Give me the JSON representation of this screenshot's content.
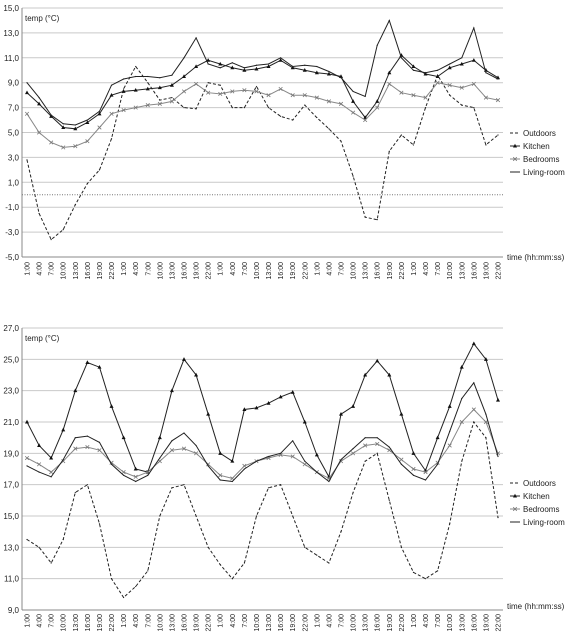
{
  "chart_data": [
    {
      "type": "line",
      "ylabel": "temp (°C)",
      "xlabel": "time (hh:mm:ss)",
      "ylim": [
        -5,
        15
      ],
      "yticks": [
        "-5,0",
        "-3,0",
        "-1,0",
        "1,0",
        "3,0",
        "5,0",
        "7,0",
        "9,0",
        "11,0",
        "13,0",
        "15,0"
      ],
      "categories": [
        "1:00",
        "4:00",
        "7:00",
        "10:00",
        "13:00",
        "16:00",
        "19:00",
        "22:00",
        "1:00",
        "4:00",
        "7:00",
        "10:00",
        "13:00",
        "16:00",
        "19:00",
        "22:00",
        "1:00",
        "4:00",
        "7:00",
        "10:00",
        "13:00",
        "16:00",
        "19:00",
        "22:00",
        "1:00",
        "4:00",
        "7:00",
        "10:00",
        "13:00",
        "16:00",
        "19:00",
        "22:00",
        "1:00",
        "4:00",
        "7:00",
        "10:00",
        "13:00",
        "16:00",
        "19:00",
        "22:00"
      ],
      "grid": true,
      "legend_position": "right",
      "series": [
        {
          "name": "Outdoors",
          "style": "dashed",
          "values": [
            2.8,
            -1.5,
            -3.6,
            -2.8,
            -0.8,
            0.9,
            2.0,
            4.5,
            8.5,
            10.3,
            9.0,
            7.6,
            7.8,
            7.0,
            6.9,
            9.0,
            8.8,
            7.0,
            7.0,
            8.7,
            7.0,
            6.3,
            6.0,
            7.2,
            6.2,
            5.3,
            4.3,
            1.5,
            -1.8,
            -2.0,
            3.5,
            4.8,
            4.0,
            7.0,
            9.6,
            8.0,
            7.2,
            7.0,
            4.0,
            4.8
          ]
        },
        {
          "name": "Kitchen",
          "style": "triangle",
          "values": [
            8.2,
            7.3,
            6.3,
            5.4,
            5.3,
            5.8,
            6.5,
            8.0,
            8.3,
            8.4,
            8.5,
            8.6,
            8.8,
            9.5,
            10.3,
            10.8,
            10.5,
            10.2,
            10.0,
            10.1,
            10.3,
            10.8,
            10.2,
            10.0,
            9.8,
            9.7,
            9.5,
            7.5,
            6.2,
            7.5,
            9.8,
            11.2,
            10.3,
            9.7,
            9.5,
            10.2,
            10.5,
            10.8,
            10.0,
            9.4
          ]
        },
        {
          "name": "Bedrooms",
          "style": "cross",
          "values": [
            6.5,
            5.0,
            4.2,
            3.8,
            3.9,
            4.3,
            5.4,
            6.5,
            6.8,
            7.0,
            7.2,
            7.3,
            7.5,
            8.3,
            8.9,
            8.2,
            8.1,
            8.3,
            8.4,
            8.3,
            8.0,
            8.5,
            8.0,
            8.0,
            7.8,
            7.5,
            7.3,
            6.6,
            6.0,
            7.0,
            8.9,
            8.2,
            8.0,
            7.8,
            9.0,
            8.8,
            8.6,
            8.9,
            7.8,
            7.6
          ]
        },
        {
          "name": "Living-room",
          "style": "plain",
          "values": [
            9.0,
            7.8,
            6.4,
            5.7,
            5.6,
            6.0,
            6.7,
            8.8,
            9.3,
            9.5,
            9.5,
            9.4,
            9.6,
            11.0,
            12.6,
            10.5,
            10.2,
            10.6,
            10.2,
            10.4,
            10.5,
            11.0,
            10.3,
            10.4,
            10.3,
            9.9,
            9.4,
            8.3,
            7.9,
            12.0,
            14.0,
            11.0,
            10.0,
            9.8,
            10.0,
            10.5,
            11.0,
            13.4,
            9.8,
            9.3
          ]
        }
      ]
    },
    {
      "type": "line",
      "ylabel": "temp (°C)",
      "xlabel": "time (hh:mm:ss)",
      "ylim": [
        9,
        27
      ],
      "yticks": [
        "9,0",
        "11,0",
        "13,0",
        "15,0",
        "17,0",
        "19,0",
        "21,0",
        "23,0",
        "25,0",
        "27,0"
      ],
      "categories": [
        "1:00",
        "4:00",
        "7:00",
        "10:00",
        "13:00",
        "16:00",
        "19:00",
        "22:00",
        "1:00",
        "4:00",
        "7:00",
        "10:00",
        "13:00",
        "16:00",
        "19:00",
        "22:00",
        "1:00",
        "4:00",
        "7:00",
        "10:00",
        "13:00",
        "16:00",
        "19:00",
        "22:00",
        "1:00",
        "4:00",
        "7:00",
        "10:00",
        "13:00",
        "16:00",
        "19:00",
        "22:00",
        "1:00",
        "4:00",
        "7:00",
        "10:00",
        "13:00",
        "16:00",
        "19:00",
        "22:00"
      ],
      "grid": true,
      "legend_position": "right",
      "series": [
        {
          "name": "Outdoors",
          "style": "dashed",
          "values": [
            13.5,
            13.0,
            12.0,
            13.5,
            16.5,
            17.0,
            14.5,
            11.0,
            9.8,
            10.5,
            11.5,
            15.0,
            16.8,
            17.0,
            15.0,
            13.0,
            11.9,
            11.0,
            12.0,
            15.0,
            16.8,
            17.0,
            15.0,
            13.0,
            12.5,
            12.0,
            14.0,
            16.5,
            18.5,
            19.0,
            16.0,
            13.0,
            11.4,
            11.0,
            11.5,
            14.5,
            18.5,
            21.0,
            20.0,
            14.9
          ]
        },
        {
          "name": "Kitchen",
          "style": "triangle",
          "values": [
            21.0,
            19.5,
            18.7,
            20.5,
            23.0,
            24.8,
            24.5,
            22.0,
            20.0,
            18.0,
            17.8,
            20.0,
            23.0,
            25.0,
            24.0,
            21.5,
            19.0,
            18.5,
            21.8,
            21.9,
            22.2,
            22.6,
            22.9,
            21.0,
            18.9,
            17.5,
            21.5,
            22.0,
            24.0,
            24.9,
            24.0,
            21.5,
            19.0,
            17.9,
            20.0,
            22.0,
            24.5,
            26.0,
            25.0,
            22.4
          ]
        },
        {
          "name": "Bedrooms",
          "style": "cross",
          "values": [
            18.7,
            18.3,
            17.8,
            18.5,
            19.3,
            19.4,
            19.2,
            18.4,
            17.8,
            17.5,
            17.8,
            18.5,
            19.2,
            19.3,
            19.0,
            18.3,
            17.6,
            17.4,
            18.2,
            18.5,
            18.7,
            18.9,
            18.8,
            18.3,
            17.8,
            17.4,
            18.5,
            19.0,
            19.5,
            19.6,
            19.2,
            18.6,
            18.0,
            17.8,
            18.4,
            19.5,
            21.0,
            21.8,
            21.0,
            19.0
          ]
        },
        {
          "name": "Living-room",
          "style": "plain",
          "values": [
            18.2,
            17.8,
            17.5,
            18.6,
            20.0,
            20.1,
            19.7,
            18.3,
            17.6,
            17.2,
            17.6,
            18.7,
            19.8,
            20.3,
            19.5,
            18.2,
            17.3,
            17.2,
            18.0,
            18.5,
            18.8,
            19.0,
            19.8,
            18.5,
            17.8,
            17.2,
            18.6,
            19.3,
            20.0,
            20.0,
            19.4,
            18.3,
            17.6,
            17.3,
            18.3,
            20.4,
            22.5,
            23.5,
            21.5,
            18.8
          ]
        }
      ]
    }
  ]
}
